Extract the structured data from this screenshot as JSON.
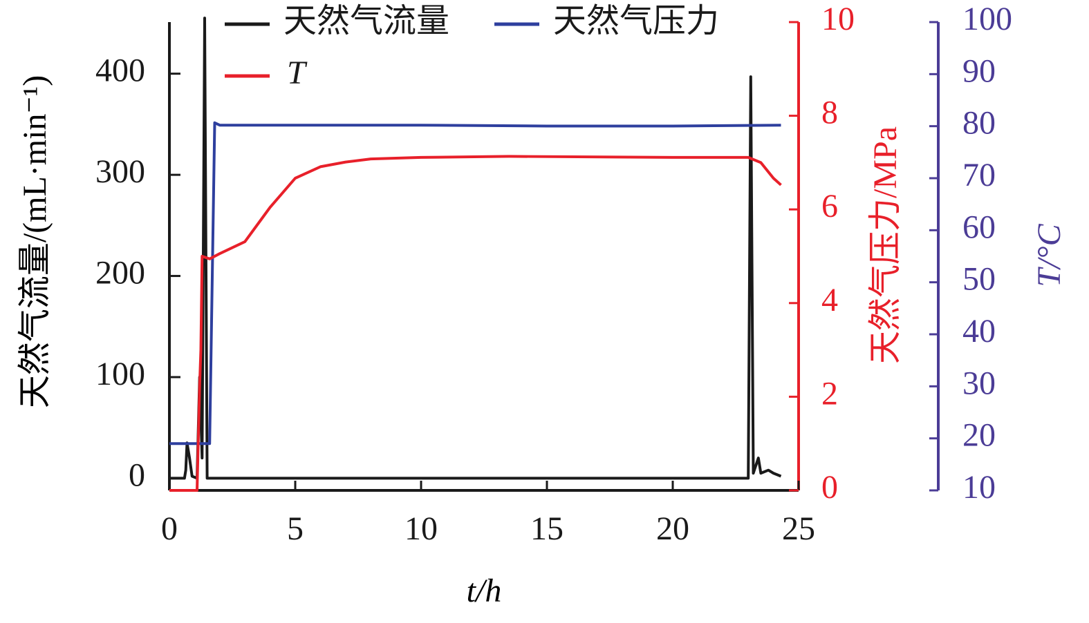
{
  "chart_data": {
    "type": "line",
    "xlabel": "t/h",
    "ylabel": "天然气流量/(mL·min⁻¹)",
    "y2label": "天然气压力/MPa",
    "y3label": "T/°C",
    "xlim": [
      0,
      25
    ],
    "xticks": [
      0,
      5,
      10,
      15,
      20,
      25
    ],
    "ylim": [
      -12,
      451
    ],
    "yticks": [
      0,
      100,
      200,
      300,
      400
    ],
    "y2lim": [
      0,
      10
    ],
    "y2ticks": [
      0,
      2,
      4,
      6,
      8,
      10
    ],
    "y2_color": "#e8202a",
    "y3lim": [
      10,
      100
    ],
    "y3ticks": [
      10,
      20,
      30,
      40,
      50,
      60,
      70,
      80,
      90,
      100
    ],
    "y3_color": "#4b3c96",
    "series": [
      {
        "name": "天然气流量",
        "color": "#1a1a1a",
        "axis": "y",
        "x": [
          0,
          0.6,
          0.65,
          0.7,
          0.8,
          0.9,
          1.1,
          1.2,
          1.3,
          1.4,
          1.5,
          23.0,
          23.1,
          23.2,
          23.4,
          23.5,
          23.8,
          24.0,
          24.3
        ],
        "values": [
          0,
          0,
          8,
          35,
          20,
          2,
          0,
          100,
          20,
          455,
          0,
          0,
          397,
          5,
          20,
          5,
          8,
          5,
          2
        ]
      },
      {
        "name": "天然气压力",
        "color": "#2e3f9e",
        "axis": "y2",
        "x": [
          0,
          1.6,
          1.8,
          2,
          5,
          10,
          15,
          20,
          24.3
        ],
        "values": [
          1.0,
          1.0,
          7.85,
          7.8,
          7.8,
          7.8,
          7.78,
          7.78,
          7.8
        ]
      },
      {
        "name": "T",
        "color": "#e8202a",
        "axis": "y3",
        "x": [
          0,
          1.1,
          1.2,
          1.25,
          1.3,
          1.6,
          2,
          3,
          4,
          5,
          6,
          7,
          8,
          10,
          13.5,
          20,
          23,
          23.5,
          24,
          24.3
        ],
        "values": [
          10,
          10,
          30,
          37,
          55,
          54.5,
          55.5,
          57.8,
          64.4,
          70,
          72.2,
          73.1,
          73.7,
          74,
          74.2,
          74,
          74,
          73,
          70,
          68.7
        ]
      }
    ]
  }
}
